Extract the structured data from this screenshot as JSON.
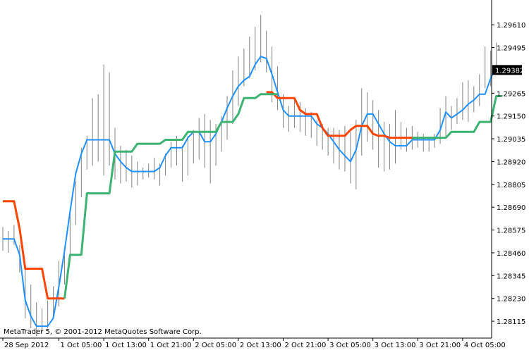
{
  "app": {
    "copyright": "MetaTrader 5, © 2001-2012 MetaQuotes Software Corp."
  },
  "colors": {
    "background": "#ffffff",
    "axis": "#000000",
    "bars": "#808080",
    "price_line": "#1e90ff",
    "trend_up": "#3cb371",
    "trend_down": "#ff4500",
    "current_price_bg": "#000000",
    "current_price_text": "#ffffff"
  },
  "chart_data": {
    "type": "line",
    "ylim": [
      1.2803,
      1.2971
    ],
    "current_price": "1.29382",
    "current_price_value": 1.29382,
    "y_ticks": [
      {
        "label": "1.29610",
        "value": 1.2961
      },
      {
        "label": "1.29495",
        "value": 1.29495
      },
      {
        "label": "1.29265",
        "value": 1.29265
      },
      {
        "label": "1.29150",
        "value": 1.2915
      },
      {
        "label": "1.29035",
        "value": 1.29035
      },
      {
        "label": "1.28920",
        "value": 1.2892
      },
      {
        "label": "1.28805",
        "value": 1.28805
      },
      {
        "label": "1.28690",
        "value": 1.2869
      },
      {
        "label": "1.28575",
        "value": 1.28575
      },
      {
        "label": "1.28460",
        "value": 1.2846
      },
      {
        "label": "1.28345",
        "value": 1.28345
      },
      {
        "label": "1.28230",
        "value": 1.2823
      },
      {
        "label": "1.28115",
        "value": 1.28115
      }
    ],
    "x_ticks": [
      {
        "label": "28 Sep 2012",
        "index": 0
      },
      {
        "label": "1 Oct 05:00",
        "index": 10
      },
      {
        "label": "1 Oct 13:00",
        "index": 18
      },
      {
        "label": "1 Oct 21:00",
        "index": 26
      },
      {
        "label": "2 Oct 05:00",
        "index": 34
      },
      {
        "label": "2 Oct 13:00",
        "index": 42
      },
      {
        "label": "2 Oct 21:00",
        "index": 50
      },
      {
        "label": "3 Oct 05:00",
        "index": 58
      },
      {
        "label": "3 Oct 13:00",
        "index": 66
      },
      {
        "label": "3 Oct 21:00",
        "index": 74
      },
      {
        "label": "4 Oct 05:00",
        "index": 82
      }
    ],
    "bars": [
      {
        "h": 1.2859,
        "l": 1.2847
      },
      {
        "h": 1.2857,
        "l": 1.2846
      },
      {
        "h": 1.286,
        "l": 1.285
      },
      {
        "h": 1.285,
        "l": 1.2836
      },
      {
        "h": 1.2838,
        "l": 1.2813
      },
      {
        "h": 1.283,
        "l": 1.2808
      },
      {
        "h": 1.2821,
        "l": 1.2804
      },
      {
        "h": 1.2818,
        "l": 1.2806
      },
      {
        "h": 1.2822,
        "l": 1.2808
      },
      {
        "h": 1.2829,
        "l": 1.2813
      },
      {
        "h": 1.2842,
        "l": 1.2819
      },
      {
        "h": 1.2848,
        "l": 1.283
      },
      {
        "h": 1.2866,
        "l": 1.2842
      },
      {
        "h": 1.2882,
        "l": 1.286
      },
      {
        "h": 1.2899,
        "l": 1.2874
      },
      {
        "h": 1.2905,
        "l": 1.2888
      },
      {
        "h": 1.2924,
        "l": 1.289
      },
      {
        "h": 1.2926,
        "l": 1.2892
      },
      {
        "h": 1.2941,
        "l": 1.2885
      },
      {
        "h": 1.2937,
        "l": 1.289
      },
      {
        "h": 1.2909,
        "l": 1.2883
      },
      {
        "h": 1.29,
        "l": 1.2881
      },
      {
        "h": 1.2898,
        "l": 1.2882
      },
      {
        "h": 1.2895,
        "l": 1.2879
      },
      {
        "h": 1.2892,
        "l": 1.288
      },
      {
        "h": 1.2889,
        "l": 1.2883
      },
      {
        "h": 1.2891,
        "l": 1.2884
      },
      {
        "h": 1.2894,
        "l": 1.2883
      },
      {
        "h": 1.2891,
        "l": 1.288
      },
      {
        "h": 1.2896,
        "l": 1.2885
      },
      {
        "h": 1.2902,
        "l": 1.2889
      },
      {
        "h": 1.2905,
        "l": 1.289
      },
      {
        "h": 1.29,
        "l": 1.2882
      },
      {
        "h": 1.2905,
        "l": 1.2885
      },
      {
        "h": 1.2908,
        "l": 1.2891
      },
      {
        "h": 1.2914,
        "l": 1.2893
      },
      {
        "h": 1.2916,
        "l": 1.2889
      },
      {
        "h": 1.2913,
        "l": 1.2881
      },
      {
        "h": 1.2911,
        "l": 1.289
      },
      {
        "h": 1.2915,
        "l": 1.2897
      },
      {
        "h": 1.2925,
        "l": 1.2903
      },
      {
        "h": 1.2938,
        "l": 1.2911
      },
      {
        "h": 1.2945,
        "l": 1.292
      },
      {
        "h": 1.2949,
        "l": 1.293
      },
      {
        "h": 1.2955,
        "l": 1.2934
      },
      {
        "h": 1.296,
        "l": 1.2938
      },
      {
        "h": 1.2966,
        "l": 1.2942
      },
      {
        "h": 1.2958,
        "l": 1.2937
      },
      {
        "h": 1.295,
        "l": 1.2922
      },
      {
        "h": 1.294,
        "l": 1.2918
      },
      {
        "h": 1.2926,
        "l": 1.2909
      },
      {
        "h": 1.292,
        "l": 1.2907
      },
      {
        "h": 1.2924,
        "l": 1.2909
      },
      {
        "h": 1.2922,
        "l": 1.2907
      },
      {
        "h": 1.2919,
        "l": 1.2905
      },
      {
        "h": 1.2917,
        "l": 1.2904
      },
      {
        "h": 1.2913,
        "l": 1.29
      },
      {
        "h": 1.2911,
        "l": 1.2898
      },
      {
        "h": 1.2909,
        "l": 1.2895
      },
      {
        "h": 1.2909,
        "l": 1.2891
      },
      {
        "h": 1.2908,
        "l": 1.2888
      },
      {
        "h": 1.291,
        "l": 1.2887
      },
      {
        "h": 1.2907,
        "l": 1.2881
      },
      {
        "h": 1.2913,
        "l": 1.2878
      },
      {
        "h": 1.2929,
        "l": 1.2895
      },
      {
        "h": 1.2927,
        "l": 1.2902
      },
      {
        "h": 1.2923,
        "l": 1.2898
      },
      {
        "h": 1.2918,
        "l": 1.2889
      },
      {
        "h": 1.2912,
        "l": 1.2887
      },
      {
        "h": 1.2911,
        "l": 1.2888
      },
      {
        "h": 1.2918,
        "l": 1.2891
      },
      {
        "h": 1.2912,
        "l": 1.2898
      },
      {
        "h": 1.2909,
        "l": 1.2897
      },
      {
        "h": 1.291,
        "l": 1.2898
      },
      {
        "h": 1.2907,
        "l": 1.2899
      },
      {
        "h": 1.2906,
        "l": 1.2897
      },
      {
        "h": 1.2904,
        "l": 1.2897
      },
      {
        "h": 1.2906,
        "l": 1.2899
      },
      {
        "h": 1.2919,
        "l": 1.2901
      },
      {
        "h": 1.2925,
        "l": 1.2904
      },
      {
        "h": 1.292,
        "l": 1.2908
      },
      {
        "h": 1.2924,
        "l": 1.2911
      },
      {
        "h": 1.2932,
        "l": 1.2913
      },
      {
        "h": 1.2933,
        "l": 1.2912
      },
      {
        "h": 1.293,
        "l": 1.2917
      },
      {
        "h": 1.2936,
        "l": 1.292
      },
      {
        "h": 1.295,
        "l": 1.2929
      },
      {
        "h": 1.2948,
        "l": 1.293
      },
      {
        "h": 1.2952,
        "l": 1.2939
      }
    ],
    "series": [
      {
        "color": "#1e90ff",
        "values": [
          1.2853,
          1.2853,
          1.2853,
          1.2845,
          1.2822,
          1.2814,
          1.2809,
          1.2809,
          1.2809,
          1.2813,
          1.2829,
          1.2847,
          1.2867,
          1.2886,
          1.2896,
          1.2903,
          1.2903,
          1.2903,
          1.2903,
          1.2903,
          1.2896,
          1.2892,
          1.2889,
          1.2887,
          1.2887,
          1.2887,
          1.2887,
          1.2887,
          1.2889,
          1.2895,
          1.2899,
          1.2899,
          1.2899,
          1.2904,
          1.2907,
          1.2907,
          1.2902,
          1.2902,
          1.2906,
          1.2912,
          1.2919,
          1.2925,
          1.293,
          1.2933,
          1.2935,
          1.2941,
          1.2945,
          1.2944,
          1.2936,
          1.2927,
          1.2918,
          1.2915,
          1.2915,
          1.2915,
          1.2915,
          1.2915,
          1.2911,
          1.2909,
          1.2906,
          1.2902,
          1.2898,
          1.2895,
          1.2892,
          1.2898,
          1.291,
          1.2916,
          1.2916,
          1.2911,
          1.2906,
          1.2902,
          1.29,
          1.29,
          1.29,
          1.2903,
          1.2903,
          1.2903,
          1.2903,
          1.2903,
          1.2908,
          1.2917,
          1.2914,
          1.2916,
          1.2918,
          1.2921,
          1.2923,
          1.2926,
          1.2926,
          1.2934,
          1.294,
          1.294
        ]
      },
      {
        "color": "#ff4500",
        "values": [
          1.2872,
          1.2872,
          1.2872,
          1.2858,
          1.2838,
          1.2838,
          1.2838,
          1.2838,
          1.2823,
          1.2823,
          1.2823,
          1.2823,
          null,
          null,
          null,
          null,
          null,
          null,
          null,
          null,
          null,
          null,
          null,
          null,
          null,
          null,
          null,
          null,
          null,
          null,
          null,
          null,
          null,
          null,
          null,
          null,
          null,
          null,
          null,
          null,
          null,
          null,
          null,
          null,
          null,
          null,
          null,
          1.2927,
          1.2927,
          1.2924,
          1.2924,
          1.2924,
          1.2924,
          1.2918,
          1.2916,
          1.2916,
          1.2916,
          1.2909,
          1.2905,
          1.2905,
          1.2905,
          1.2905,
          1.2908,
          1.291,
          1.291,
          1.291,
          1.2906,
          1.2905,
          1.2905,
          1.2904,
          1.2904,
          1.2904,
          1.2904,
          1.2904,
          1.2904,
          null,
          null,
          null,
          null,
          null,
          null,
          null,
          null,
          null,
          null,
          null,
          null,
          null,
          null,
          null
        ]
      },
      {
        "color": "#3cb371",
        "values": [
          null,
          null,
          null,
          null,
          null,
          null,
          null,
          null,
          null,
          null,
          null,
          1.2823,
          1.2845,
          1.2845,
          1.2845,
          1.2876,
          1.2876,
          1.2876,
          1.2876,
          1.2876,
          1.2897,
          1.2897,
          1.2897,
          1.2897,
          1.2901,
          1.2901,
          1.2901,
          1.2901,
          1.2901,
          1.2903,
          1.2903,
          1.2903,
          1.2903,
          1.2907,
          1.2907,
          1.2907,
          1.2907,
          1.2907,
          1.2907,
          1.2912,
          1.2912,
          1.2912,
          1.2916,
          1.2924,
          1.2924,
          1.2924,
          1.2926,
          1.2926,
          1.2926,
          1.2926,
          null,
          null,
          null,
          null,
          null,
          null,
          null,
          null,
          null,
          null,
          null,
          null,
          null,
          null,
          null,
          null,
          null,
          null,
          null,
          null,
          null,
          null,
          null,
          1.2904,
          1.2904,
          1.2904,
          1.2904,
          1.2904,
          1.2904,
          1.2904,
          1.2907,
          1.2907,
          1.2907,
          1.2907,
          1.2907,
          1.2912,
          1.2912,
          1.2912,
          1.2925,
          1.2925
        ]
      }
    ]
  }
}
